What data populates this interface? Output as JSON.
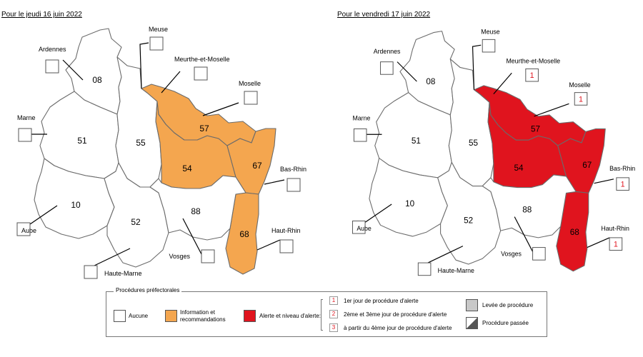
{
  "maps": [
    {
      "id": "left",
      "title": "Pour le jeudi 16 juin 2022",
      "departments": [
        {
          "code": "08",
          "name": "Ardennes",
          "status": "none",
          "day": ""
        },
        {
          "code": "51",
          "name": "Marne",
          "status": "none",
          "day": ""
        },
        {
          "code": "55",
          "name": "Meuse",
          "status": "none",
          "day": ""
        },
        {
          "code": "54",
          "name": "Meurthe-et-Moselle",
          "status": "information",
          "day": ""
        },
        {
          "code": "57",
          "name": "Moselle",
          "status": "information",
          "day": ""
        },
        {
          "code": "67",
          "name": "Bas-Rhin",
          "status": "information",
          "day": ""
        },
        {
          "code": "68",
          "name": "Haut-Rhin",
          "status": "information",
          "day": ""
        },
        {
          "code": "10",
          "name": "Aube",
          "status": "none",
          "day": ""
        },
        {
          "code": "52",
          "name": "Haute-Marne",
          "status": "none",
          "day": ""
        },
        {
          "code": "88",
          "name": "Vosges",
          "status": "none",
          "day": ""
        }
      ]
    },
    {
      "id": "right",
      "title": "Pour le vendredi 17 juin 2022",
      "departments": [
        {
          "code": "08",
          "name": "Ardennes",
          "status": "none",
          "day": ""
        },
        {
          "code": "51",
          "name": "Marne",
          "status": "none",
          "day": ""
        },
        {
          "code": "55",
          "name": "Meuse",
          "status": "none",
          "day": ""
        },
        {
          "code": "54",
          "name": "Meurthe-et-Moselle",
          "status": "alert",
          "day": "1"
        },
        {
          "code": "57",
          "name": "Moselle",
          "status": "alert",
          "day": "1"
        },
        {
          "code": "67",
          "name": "Bas-Rhin",
          "status": "alert",
          "day": "1"
        },
        {
          "code": "68",
          "name": "Haut-Rhin",
          "status": "alert",
          "day": "1"
        },
        {
          "code": "10",
          "name": "Aube",
          "status": "none",
          "day": ""
        },
        {
          "code": "52",
          "name": "Haute-Marne",
          "status": "none",
          "day": ""
        },
        {
          "code": "88",
          "name": "Vosges",
          "status": "none",
          "day": ""
        }
      ]
    }
  ],
  "status_colors": {
    "none": "#ffffff",
    "information": "#f4a64f",
    "alert": "#e0141e"
  },
  "legend": {
    "title": "Procédures préfectorales",
    "none_label": "Aucune",
    "info_label_line1": "Information et",
    "info_label_line2": "recommandations",
    "alert_label": "Alerte et niveau d'alerte:",
    "days": [
      {
        "num": "1",
        "label": "1er jour de procédure d'alerte"
      },
      {
        "num": "2",
        "label": "2ème et 3ème jour de procédure d'alerte"
      },
      {
        "num": "3",
        "label": "à partir du 4ème jour de procédure d'alerte"
      }
    ],
    "lifted_label": "Levée de procédure",
    "past_label": "Procédure passée"
  }
}
